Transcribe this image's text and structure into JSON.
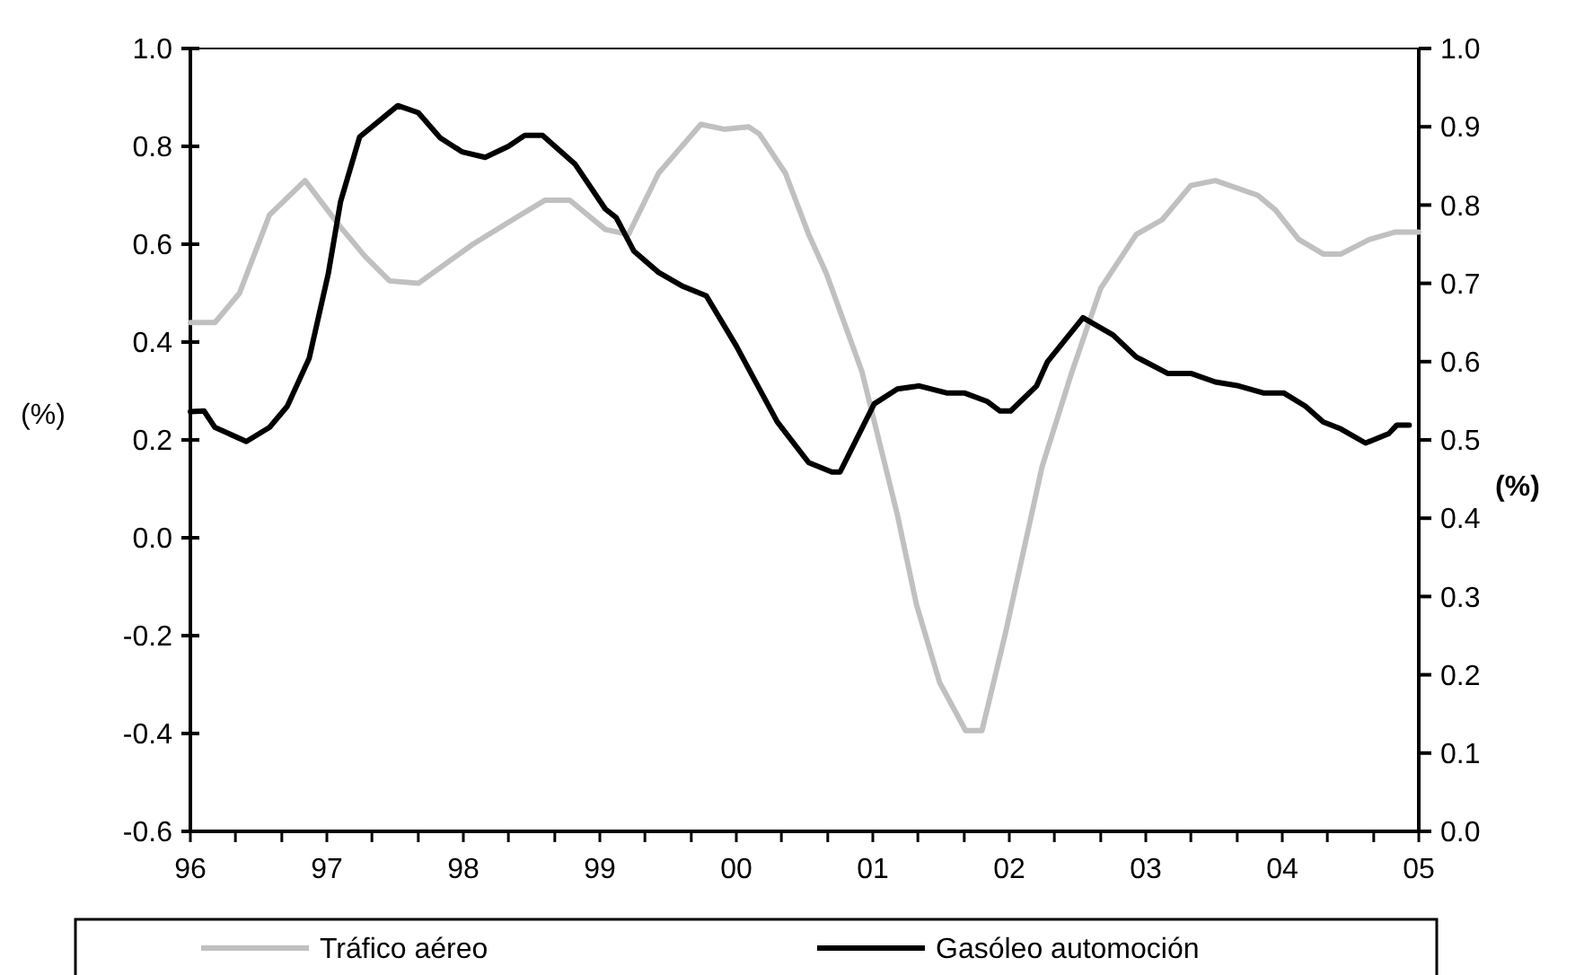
{
  "chart_data": {
    "type": "line",
    "ylabel": "(%)",
    "y2label": "(%)",
    "xlim": [
      1996,
      2005
    ],
    "xticks": [
      {
        "value": 1996,
        "label": "96"
      },
      {
        "value": 1996.33,
        "label": null
      },
      {
        "value": 1996.67,
        "label": null
      },
      {
        "value": 1997,
        "label": "97"
      },
      {
        "value": 1997.33,
        "label": null
      },
      {
        "value": 1997.67,
        "label": null
      },
      {
        "value": 1998,
        "label": "98"
      },
      {
        "value": 1998.33,
        "label": null
      },
      {
        "value": 1998.67,
        "label": null
      },
      {
        "value": 1999,
        "label": "99"
      },
      {
        "value": 1999.33,
        "label": null
      },
      {
        "value": 1999.67,
        "label": null
      },
      {
        "value": 2000,
        "label": "00"
      },
      {
        "value": 2000.33,
        "label": null
      },
      {
        "value": 2000.67,
        "label": null
      },
      {
        "value": 2001,
        "label": "01"
      },
      {
        "value": 2001.33,
        "label": null
      },
      {
        "value": 2001.67,
        "label": null
      },
      {
        "value": 2002,
        "label": "02"
      },
      {
        "value": 2002.33,
        "label": null
      },
      {
        "value": 2002.67,
        "label": null
      },
      {
        "value": 2003,
        "label": "03"
      },
      {
        "value": 2003.33,
        "label": null
      },
      {
        "value": 2003.67,
        "label": null
      },
      {
        "value": 2004,
        "label": "04"
      },
      {
        "value": 2004.33,
        "label": null
      },
      {
        "value": 2004.67,
        "label": null
      },
      {
        "value": 2005,
        "label": "05"
      }
    ],
    "ylim": [
      -0.6,
      1.0
    ],
    "yticks": [
      {
        "value": -0.6,
        "label": "-0.6"
      },
      {
        "value": -0.4,
        "label": "-0.4"
      },
      {
        "value": -0.2,
        "label": "-0.2"
      },
      {
        "value": 0,
        "label": "0.0"
      },
      {
        "value": 0.2,
        "label": "0.2"
      },
      {
        "value": 0.4,
        "label": "0.4"
      },
      {
        "value": 0.6,
        "label": "0.6"
      },
      {
        "value": 0.8,
        "label": "0.8"
      },
      {
        "value": 1.0,
        "label": "1.0"
      }
    ],
    "y2lim": [
      0,
      1.0
    ],
    "y2ticks": [
      {
        "value": 0,
        "label": "0.0"
      },
      {
        "value": 0.1,
        "label": "0.1"
      },
      {
        "value": 0.2,
        "label": "0.2"
      },
      {
        "value": 0.3,
        "label": "0.3"
      },
      {
        "value": 0.4,
        "label": "0.4"
      },
      {
        "value": 0.5,
        "label": "0.5"
      },
      {
        "value": 0.6,
        "label": "0.6"
      },
      {
        "value": 0.7,
        "label": "0.7"
      },
      {
        "value": 0.8,
        "label": "0.8"
      },
      {
        "value": 0.9,
        "label": "0.9"
      },
      {
        "value": 1.0,
        "label": "1.0"
      }
    ],
    "grid": false,
    "legend": "bottom",
    "marker": "none",
    "line_style": "solid",
    "series": [
      {
        "name": "Tráfico aéreo",
        "color": "#c0c0c0",
        "x": [
          1996.0,
          1996.18,
          1996.36,
          1996.58,
          1996.84,
          1997.1,
          1997.28,
          1997.46,
          1997.67,
          1998.07,
          1998.42,
          1998.6,
          1998.78,
          1999.04,
          1999.21,
          1999.43,
          1999.74,
          1999.91,
          2000.09,
          2000.17,
          2000.36,
          2000.53,
          2000.66,
          2000.92,
          2001.18,
          2001.32,
          2001.49,
          2001.68,
          2001.8,
          2001.97,
          2002.24,
          2002.46,
          2002.67,
          2002.93,
          2003.12,
          2003.33,
          2003.51,
          2003.82,
          2003.95,
          2004.12,
          2004.3,
          2004.43,
          2004.64,
          2004.83,
          2005.0
        ],
        "values": [
          0.44,
          0.44,
          0.5,
          0.66,
          0.73,
          0.635,
          0.575,
          0.525,
          0.52,
          0.6,
          0.66,
          0.69,
          0.69,
          0.63,
          0.62,
          0.745,
          0.845,
          0.835,
          0.84,
          0.825,
          0.745,
          0.62,
          0.54,
          0.34,
          0.047,
          -0.137,
          -0.296,
          -0.394,
          -0.394,
          -0.197,
          0.145,
          0.34,
          0.51,
          0.62,
          0.65,
          0.72,
          0.73,
          0.7,
          0.67,
          0.61,
          0.58,
          0.58,
          0.61,
          0.625,
          0.625
        ]
      },
      {
        "name": "Gasóleo automoción",
        "color": "#000000",
        "axis": "y2",
        "x": [
          1996.0,
          1996.1,
          1996.18,
          1996.41,
          1996.58,
          1996.71,
          1996.87,
          1997.01,
          1997.1,
          1997.24,
          1997.52,
          1997.67,
          1997.83,
          1997.99,
          1998.16,
          1998.33,
          1998.45,
          1998.58,
          1998.82,
          1999.04,
          1999.12,
          1999.25,
          1999.43,
          1999.61,
          1999.78,
          2000.0,
          2000.17,
          2000.3,
          2000.53,
          2000.7,
          2000.76,
          2001.01,
          2001.18,
          2001.34,
          2001.54,
          2001.67,
          2001.84,
          2001.93,
          2002.01,
          2002.2,
          2002.28,
          2002.54,
          2002.76,
          2002.93,
          2003.16,
          2003.33,
          2003.51,
          2003.68,
          2003.86,
          2004.01,
          2004.17,
          2004.3,
          2004.43,
          2004.61,
          2004.78,
          2004.84,
          2004.93
        ],
        "values": [
          0.536,
          0.537,
          0.516,
          0.498,
          0.516,
          0.543,
          0.604,
          0.712,
          0.804,
          0.887,
          0.927,
          0.918,
          0.886,
          0.868,
          0.861,
          0.875,
          0.889,
          0.889,
          0.852,
          0.795,
          0.784,
          0.741,
          0.714,
          0.696,
          0.684,
          0.62,
          0.565,
          0.523,
          0.471,
          0.459,
          0.459,
          0.546,
          0.565,
          0.569,
          0.56,
          0.56,
          0.549,
          0.537,
          0.537,
          0.569,
          0.6,
          0.656,
          0.634,
          0.606,
          0.585,
          0.585,
          0.574,
          0.569,
          0.56,
          0.56,
          0.543,
          0.523,
          0.514,
          0.496,
          0.508,
          0.519,
          0.519
        ]
      }
    ]
  }
}
